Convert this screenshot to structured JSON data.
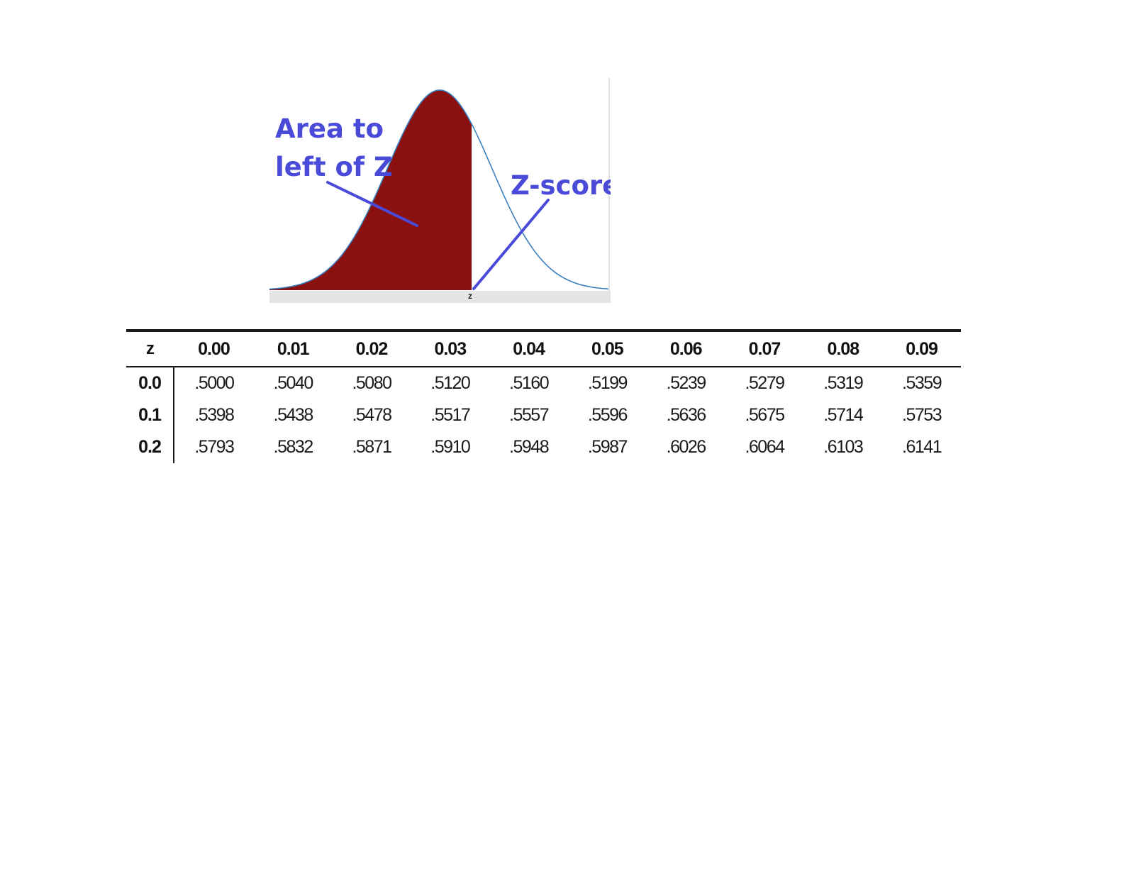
{
  "diagram": {
    "callout_area_line1": "Area to",
    "callout_area_line2": "left of Z",
    "callout_zscore": "Z-score",
    "axis_mark": "z",
    "colors": {
      "shaded_area": "#8b1010",
      "curve": "#3a80c0",
      "callout": "#4a4ad8",
      "baseline": "#e5e5e5"
    }
  },
  "table": {
    "corner_header": "z",
    "column_headers": [
      "0.00",
      "0.01",
      "0.02",
      "0.03",
      "0.04",
      "0.05",
      "0.06",
      "0.07",
      "0.08",
      "0.09"
    ],
    "rows": [
      {
        "z": "0.0",
        "values": [
          ".5000",
          ".5040",
          ".5080",
          ".5120",
          ".5160",
          ".5199",
          ".5239",
          ".5279",
          ".5319",
          ".5359"
        ]
      },
      {
        "z": "0.1",
        "values": [
          ".5398",
          ".5438",
          ".5478",
          ".5517",
          ".5557",
          ".5596",
          ".5636",
          ".5675",
          ".5714",
          ".5753"
        ]
      },
      {
        "z": "0.2",
        "values": [
          ".5793",
          ".5832",
          ".5871",
          ".5910",
          ".5948",
          ".5987",
          ".6026",
          ".6064",
          ".6103",
          ".6141"
        ]
      }
    ]
  }
}
